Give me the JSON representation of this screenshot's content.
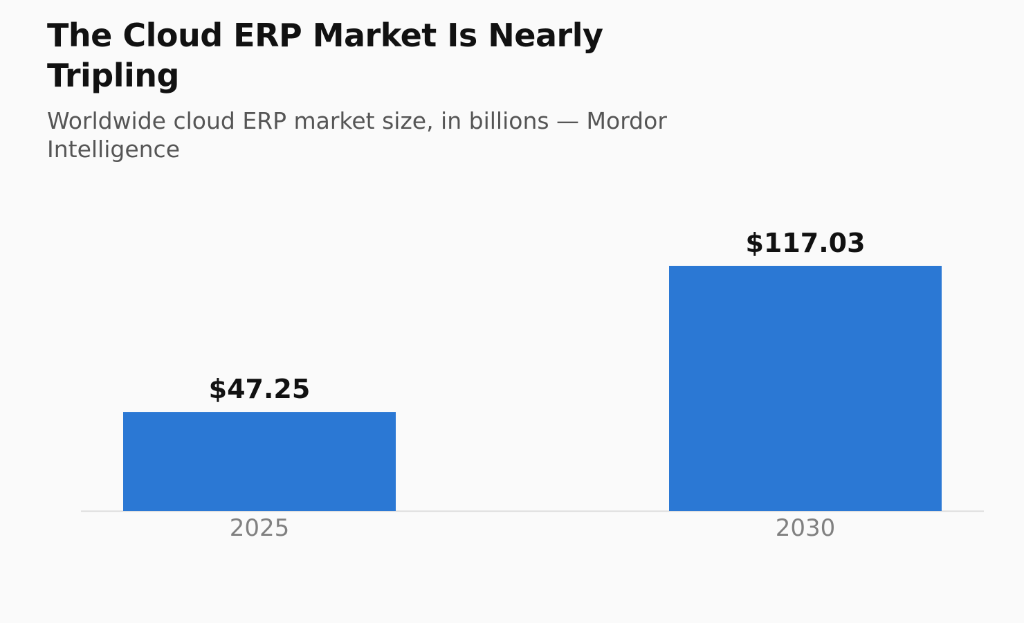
{
  "chart_data": {
    "type": "bar",
    "title": "The Cloud ERP Market Is Nearly Tripling",
    "subtitle": "Worldwide cloud ERP market size, in billions — Mordor Intelligence",
    "categories": [
      "2025",
      "2030"
    ],
    "values": [
      47.25,
      117.03
    ],
    "data_labels": [
      "$47.25",
      "$117.03"
    ],
    "xlabel": "",
    "ylabel": "",
    "ylim": [
      0,
      117.03
    ],
    "grid": false,
    "legend": "none",
    "bar_color": "#2b78d4",
    "baseline_color": "#dcdcdc"
  }
}
